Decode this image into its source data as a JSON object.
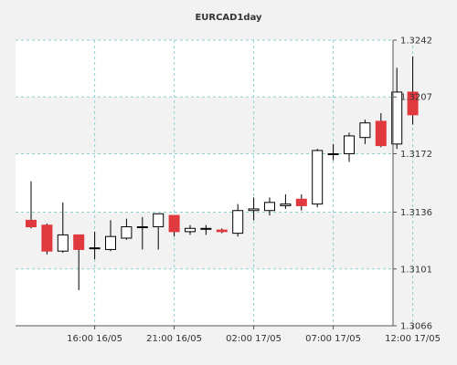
{
  "chart_data": {
    "type": "candlestick",
    "title": "EURCAD1day",
    "xlabel": "",
    "ylabel": "",
    "ylim": [
      1.3066,
      1.3242
    ],
    "y_ticks": [
      "1.3242",
      "1.3207",
      "1.3172",
      "1.3136",
      "1.3101",
      "1.3066"
    ],
    "y_tick_values": [
      1.3242,
      1.3207,
      1.3172,
      1.3136,
      1.3101,
      1.3066
    ],
    "x_ticks": [
      {
        "label": "16:00 16/05",
        "index": 4
      },
      {
        "label": "21:00 16/05",
        "index": 9
      },
      {
        "label": "02:00 17/05",
        "index": 14
      },
      {
        "label": "07:00 17/05",
        "index": 19
      },
      {
        "label": "12:00 17/05",
        "index": 24
      }
    ],
    "grid": true,
    "colors": {
      "up": "#ffffff",
      "down": "#e0393e",
      "outline": "#000000",
      "grid": "#8fd0d0",
      "band": "#f2f2f2",
      "plot_bg": "#ffffff"
    },
    "candles": [
      {
        "open": 1.3131,
        "high": 1.3155,
        "low": 1.3126,
        "close": 1.3127
      },
      {
        "open": 1.3128,
        "high": 1.3129,
        "low": 1.311,
        "close": 1.3112
      },
      {
        "open": 1.3112,
        "high": 1.3142,
        "low": 1.3111,
        "close": 1.3122
      },
      {
        "open": 1.3122,
        "high": 1.3122,
        "low": 1.3088,
        "close": 1.3113
      },
      {
        "open": 1.3114,
        "high": 1.3124,
        "low": 1.3107,
        "close": 1.3114
      },
      {
        "open": 1.3113,
        "high": 1.3131,
        "low": 1.3112,
        "close": 1.3121
      },
      {
        "open": 1.312,
        "high": 1.3132,
        "low": 1.3119,
        "close": 1.3127
      },
      {
        "open": 1.3127,
        "high": 1.3133,
        "low": 1.3113,
        "close": 1.3127
      },
      {
        "open": 1.3127,
        "high": 1.3135,
        "low": 1.3113,
        "close": 1.3135
      },
      {
        "open": 1.3134,
        "high": 1.3134,
        "low": 1.3121,
        "close": 1.3124
      },
      {
        "open": 1.3124,
        "high": 1.3128,
        "low": 1.3122,
        "close": 1.3126
      },
      {
        "open": 1.3126,
        "high": 1.3128,
        "low": 1.3122,
        "close": 1.3126
      },
      {
        "open": 1.3125,
        "high": 1.3126,
        "low": 1.3123,
        "close": 1.3124
      },
      {
        "open": 1.3123,
        "high": 1.3141,
        "low": 1.3121,
        "close": 1.3137
      },
      {
        "open": 1.3137,
        "high": 1.3145,
        "low": 1.3131,
        "close": 1.3138
      },
      {
        "open": 1.3137,
        "high": 1.3145,
        "low": 1.3134,
        "close": 1.3142
      },
      {
        "open": 1.314,
        "high": 1.3147,
        "low": 1.3138,
        "close": 1.3141
      },
      {
        "open": 1.3144,
        "high": 1.3147,
        "low": 1.3137,
        "close": 1.314
      },
      {
        "open": 1.3141,
        "high": 1.3175,
        "low": 1.3139,
        "close": 1.3174
      },
      {
        "open": 1.3172,
        "high": 1.3178,
        "low": 1.3168,
        "close": 1.3172
      },
      {
        "open": 1.3172,
        "high": 1.3185,
        "low": 1.3167,
        "close": 1.3183
      },
      {
        "open": 1.3182,
        "high": 1.3193,
        "low": 1.3178,
        "close": 1.3191
      },
      {
        "open": 1.3192,
        "high": 1.3197,
        "low": 1.3176,
        "close": 1.3177
      },
      {
        "open": 1.3178,
        "high": 1.3225,
        "low": 1.3175,
        "close": 1.321
      },
      {
        "open": 1.321,
        "high": 1.3232,
        "low": 1.319,
        "close": 1.3196
      }
    ]
  }
}
